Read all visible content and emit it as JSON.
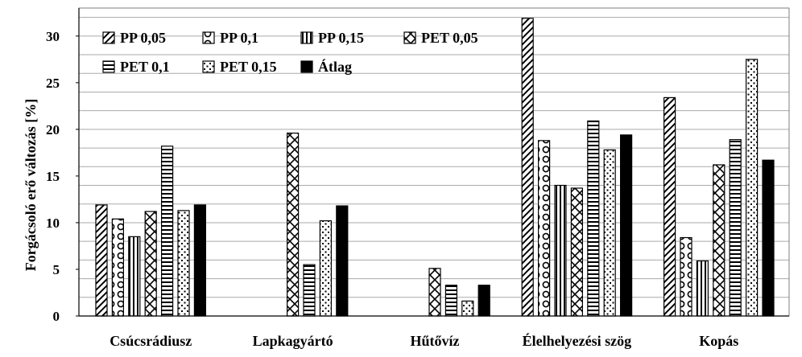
{
  "chart_data": {
    "type": "bar",
    "ylabel": "Forgácsoló erő változás [%]",
    "xlabel": "",
    "ylim": [
      0,
      33
    ],
    "yticks": [
      0,
      5,
      10,
      15,
      20,
      25,
      30
    ],
    "grid": "horizontal",
    "legend_position": "top-left",
    "categories": [
      "Csúcsrádiusz",
      "Lapkagyártó",
      "Hűtővíz",
      "Élelhelyezési szög",
      "Kopás"
    ],
    "series": [
      {
        "name": "PP 0,05",
        "pattern": "diagonal",
        "values": [
          11.9,
          null,
          null,
          31.9,
          23.4
        ]
      },
      {
        "name": "PP 0,1",
        "pattern": "circles",
        "values": [
          10.4,
          null,
          null,
          18.8,
          8.4
        ]
      },
      {
        "name": "PP 0,15",
        "pattern": "vertical",
        "values": [
          8.5,
          null,
          null,
          14.0,
          5.9
        ]
      },
      {
        "name": "PET 0,05",
        "pattern": "diamonds",
        "values": [
          11.2,
          19.6,
          5.1,
          13.7,
          16.2
        ]
      },
      {
        "name": "PET 0,1",
        "pattern": "horizontal",
        "values": [
          18.2,
          5.5,
          3.3,
          20.9,
          18.9
        ]
      },
      {
        "name": "PET 0,15",
        "pattern": "dots",
        "values": [
          11.3,
          10.2,
          1.6,
          17.8,
          27.5
        ]
      },
      {
        "name": "Átlag",
        "pattern": "solid",
        "values": [
          11.9,
          11.8,
          3.3,
          19.4,
          16.7
        ]
      }
    ],
    "colors": {
      "bar_outline": "#000000",
      "grid": "#aaaaaa",
      "axis": "#7f7f7f"
    }
  }
}
